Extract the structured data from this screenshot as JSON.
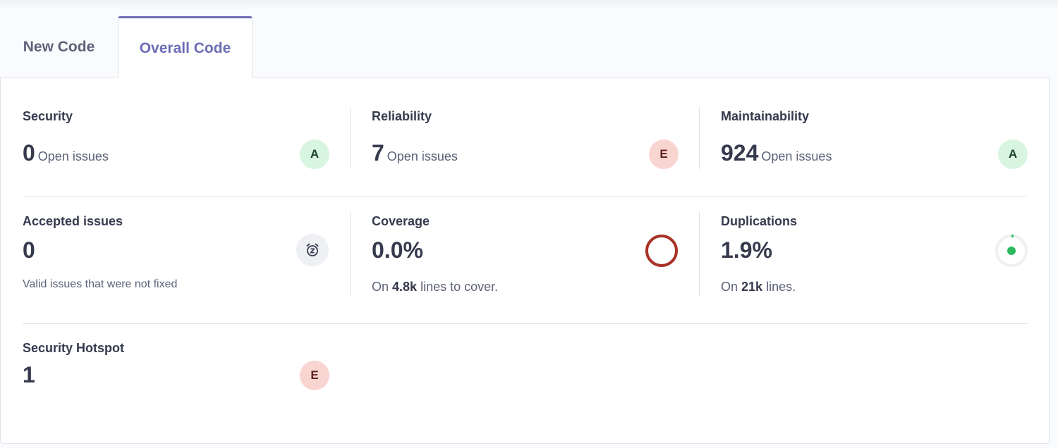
{
  "tabs": [
    {
      "label": "New Code",
      "active": false
    },
    {
      "label": "Overall Code",
      "active": true
    }
  ],
  "colors": {
    "accent": "#6d6cb5",
    "grade_a_bg": "#d8f5df",
    "grade_e_bg": "#f9d5d2",
    "coverage_ring": "#a93226",
    "duplication_dot": "#2dba5f"
  },
  "security": {
    "label": "Security",
    "value": "0",
    "unit": "Open issues",
    "grade": "A"
  },
  "reliability": {
    "label": "Reliability",
    "value": "7",
    "unit": "Open issues",
    "grade": "E"
  },
  "maintainability": {
    "label": "Maintainability",
    "value": "924",
    "unit": "Open issues",
    "grade": "A"
  },
  "accepted": {
    "label": "Accepted issues",
    "value": "0",
    "description": "Valid issues that were not fixed",
    "icon": "snooze-clock-icon"
  },
  "coverage": {
    "label": "Coverage",
    "value": "0.0%",
    "prefix": "On",
    "amount": "4.8k",
    "suffix": "lines to cover.",
    "percent": 0.0
  },
  "duplications": {
    "label": "Duplications",
    "value": "1.9%",
    "prefix": "On",
    "amount": "21k",
    "suffix": "lines.",
    "percent": 1.9
  },
  "hotspot": {
    "label": "Security Hotspot",
    "value": "1",
    "grade": "E"
  }
}
